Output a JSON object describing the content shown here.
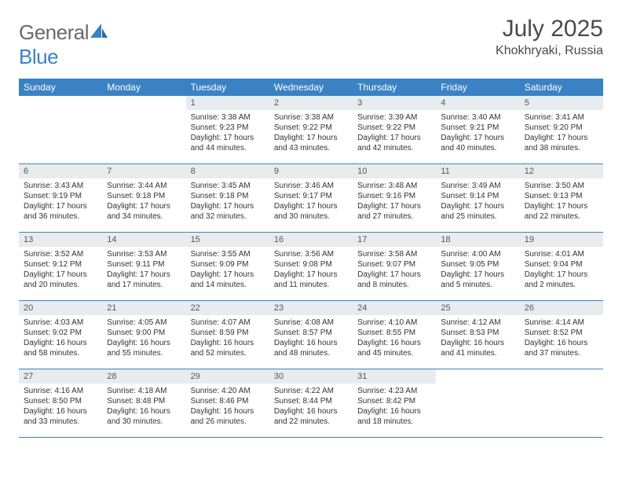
{
  "brand": {
    "part1": "General",
    "part2": "Blue"
  },
  "title": "July 2025",
  "location": "Khokhryaki, Russia",
  "colors": {
    "header_bg": "#3b82c4",
    "header_text": "#ffffff",
    "daynum_bg": "#e8ecef",
    "daynum_text": "#555555",
    "body_text": "#333333",
    "rule": "#3b82c4",
    "page_bg": "#ffffff",
    "logo_gray": "#6a6a6a",
    "logo_blue": "#3b82c4"
  },
  "weekdays": [
    "Sunday",
    "Monday",
    "Tuesday",
    "Wednesday",
    "Thursday",
    "Friday",
    "Saturday"
  ],
  "weeks": [
    [
      null,
      null,
      {
        "n": "1",
        "sunrise": "3:38 AM",
        "sunset": "9:23 PM",
        "daylight": "17 hours and 44 minutes."
      },
      {
        "n": "2",
        "sunrise": "3:38 AM",
        "sunset": "9:22 PM",
        "daylight": "17 hours and 43 minutes."
      },
      {
        "n": "3",
        "sunrise": "3:39 AM",
        "sunset": "9:22 PM",
        "daylight": "17 hours and 42 minutes."
      },
      {
        "n": "4",
        "sunrise": "3:40 AM",
        "sunset": "9:21 PM",
        "daylight": "17 hours and 40 minutes."
      },
      {
        "n": "5",
        "sunrise": "3:41 AM",
        "sunset": "9:20 PM",
        "daylight": "17 hours and 38 minutes."
      }
    ],
    [
      {
        "n": "6",
        "sunrise": "3:43 AM",
        "sunset": "9:19 PM",
        "daylight": "17 hours and 36 minutes."
      },
      {
        "n": "7",
        "sunrise": "3:44 AM",
        "sunset": "9:18 PM",
        "daylight": "17 hours and 34 minutes."
      },
      {
        "n": "8",
        "sunrise": "3:45 AM",
        "sunset": "9:18 PM",
        "daylight": "17 hours and 32 minutes."
      },
      {
        "n": "9",
        "sunrise": "3:46 AM",
        "sunset": "9:17 PM",
        "daylight": "17 hours and 30 minutes."
      },
      {
        "n": "10",
        "sunrise": "3:48 AM",
        "sunset": "9:16 PM",
        "daylight": "17 hours and 27 minutes."
      },
      {
        "n": "11",
        "sunrise": "3:49 AM",
        "sunset": "9:14 PM",
        "daylight": "17 hours and 25 minutes."
      },
      {
        "n": "12",
        "sunrise": "3:50 AM",
        "sunset": "9:13 PM",
        "daylight": "17 hours and 22 minutes."
      }
    ],
    [
      {
        "n": "13",
        "sunrise": "3:52 AM",
        "sunset": "9:12 PM",
        "daylight": "17 hours and 20 minutes."
      },
      {
        "n": "14",
        "sunrise": "3:53 AM",
        "sunset": "9:11 PM",
        "daylight": "17 hours and 17 minutes."
      },
      {
        "n": "15",
        "sunrise": "3:55 AM",
        "sunset": "9:09 PM",
        "daylight": "17 hours and 14 minutes."
      },
      {
        "n": "16",
        "sunrise": "3:56 AM",
        "sunset": "9:08 PM",
        "daylight": "17 hours and 11 minutes."
      },
      {
        "n": "17",
        "sunrise": "3:58 AM",
        "sunset": "9:07 PM",
        "daylight": "17 hours and 8 minutes."
      },
      {
        "n": "18",
        "sunrise": "4:00 AM",
        "sunset": "9:05 PM",
        "daylight": "17 hours and 5 minutes."
      },
      {
        "n": "19",
        "sunrise": "4:01 AM",
        "sunset": "9:04 PM",
        "daylight": "17 hours and 2 minutes."
      }
    ],
    [
      {
        "n": "20",
        "sunrise": "4:03 AM",
        "sunset": "9:02 PM",
        "daylight": "16 hours and 58 minutes."
      },
      {
        "n": "21",
        "sunrise": "4:05 AM",
        "sunset": "9:00 PM",
        "daylight": "16 hours and 55 minutes."
      },
      {
        "n": "22",
        "sunrise": "4:07 AM",
        "sunset": "8:59 PM",
        "daylight": "16 hours and 52 minutes."
      },
      {
        "n": "23",
        "sunrise": "4:08 AM",
        "sunset": "8:57 PM",
        "daylight": "16 hours and 48 minutes."
      },
      {
        "n": "24",
        "sunrise": "4:10 AM",
        "sunset": "8:55 PM",
        "daylight": "16 hours and 45 minutes."
      },
      {
        "n": "25",
        "sunrise": "4:12 AM",
        "sunset": "8:53 PM",
        "daylight": "16 hours and 41 minutes."
      },
      {
        "n": "26",
        "sunrise": "4:14 AM",
        "sunset": "8:52 PM",
        "daylight": "16 hours and 37 minutes."
      }
    ],
    [
      {
        "n": "27",
        "sunrise": "4:16 AM",
        "sunset": "8:50 PM",
        "daylight": "16 hours and 33 minutes."
      },
      {
        "n": "28",
        "sunrise": "4:18 AM",
        "sunset": "8:48 PM",
        "daylight": "16 hours and 30 minutes."
      },
      {
        "n": "29",
        "sunrise": "4:20 AM",
        "sunset": "8:46 PM",
        "daylight": "16 hours and 26 minutes."
      },
      {
        "n": "30",
        "sunrise": "4:22 AM",
        "sunset": "8:44 PM",
        "daylight": "16 hours and 22 minutes."
      },
      {
        "n": "31",
        "sunrise": "4:23 AM",
        "sunset": "8:42 PM",
        "daylight": "16 hours and 18 minutes."
      },
      null,
      null
    ]
  ],
  "labels": {
    "sunrise": "Sunrise:",
    "sunset": "Sunset:",
    "daylight": "Daylight:"
  }
}
